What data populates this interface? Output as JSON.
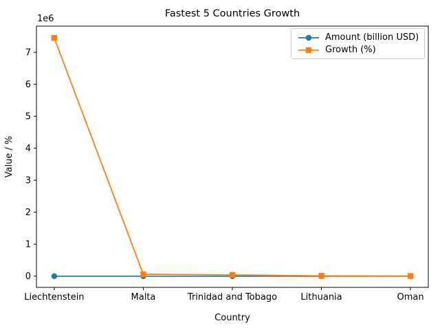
{
  "chart_data": {
    "type": "line",
    "title": "Fastest 5 Countries Growth",
    "xlabel": "Country",
    "ylabel": "Value / %",
    "categories": [
      "Liechtenstein",
      "Malta",
      "Trinidad and Tobago",
      "Lithuania",
      "Oman"
    ],
    "series": [
      {
        "name": "Amount (billion USD)",
        "color": "#1f77b4",
        "marker": "circle",
        "values": [
          0,
          0,
          0,
          0,
          0
        ]
      },
      {
        "name": "Growth (%)",
        "color": "#ff7f0e",
        "marker": "square",
        "values": [
          7450000,
          60000,
          40000,
          10000,
          5000
        ]
      }
    ],
    "ylim": [
      -350000,
      7820000
    ],
    "yticks": {
      "values": [
        0,
        1000000,
        2000000,
        3000000,
        4000000,
        5000000,
        6000000,
        7000000
      ],
      "labels": [
        "0",
        "1",
        "2",
        "3",
        "4",
        "5",
        "6",
        "7"
      ],
      "offset_label": "1e6"
    },
    "grid": false,
    "legend_position": "upper right",
    "spine_color": "#000000"
  }
}
